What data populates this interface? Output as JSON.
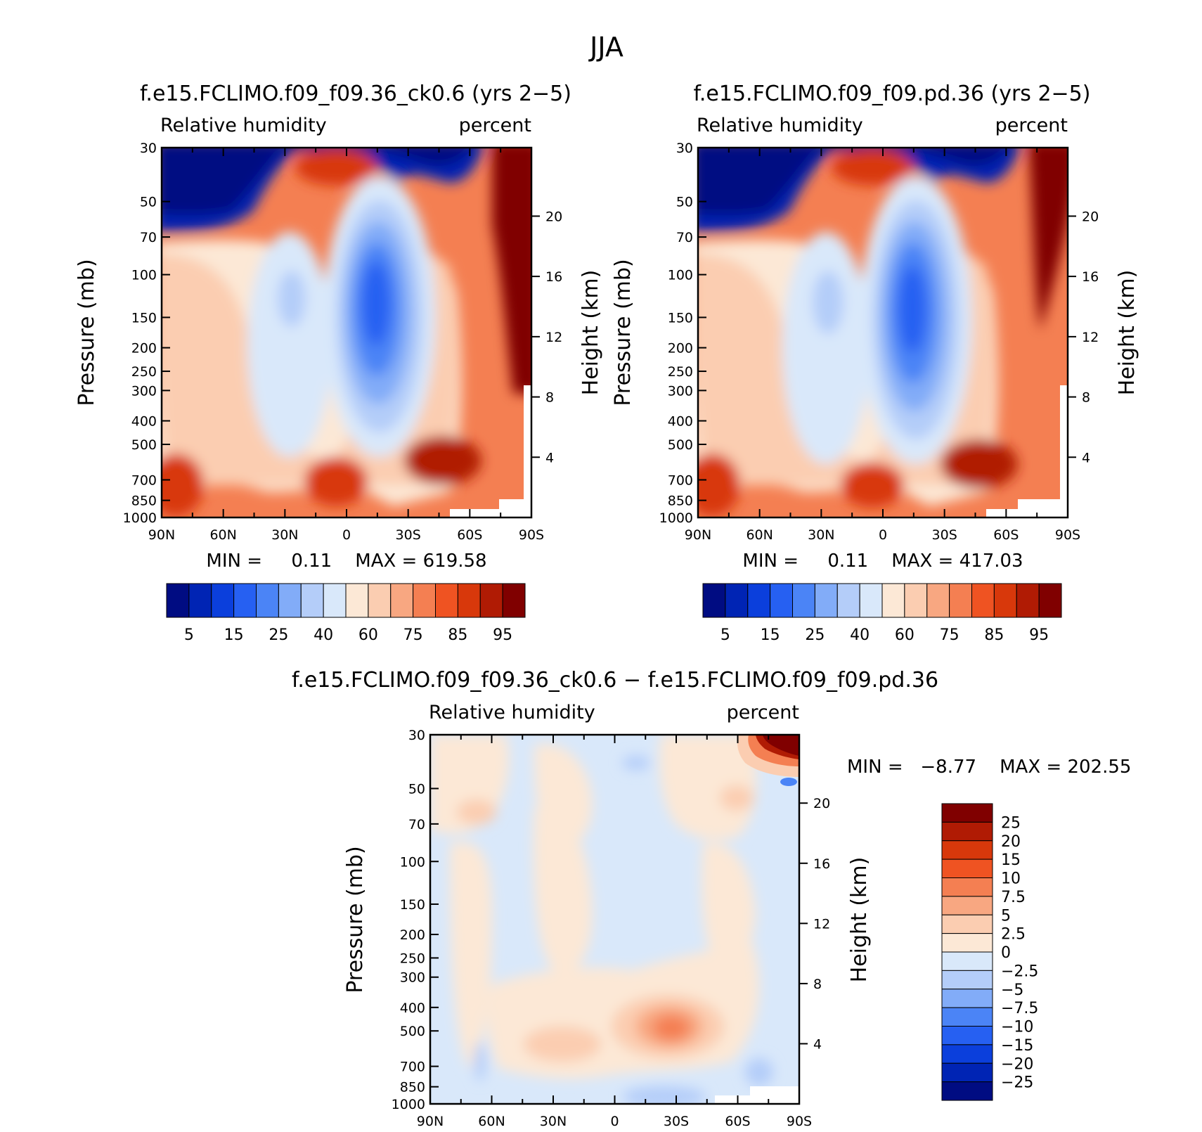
{
  "figure_title": "JJA",
  "chart_data": [
    {
      "type": "heatmap",
      "title": "f.e15.FCLIMO.f09_f09.36_ck0.6 (yrs 2−5)",
      "left_label": "Relative humidity",
      "right_label": "percent",
      "ylabel": "Pressure (mb)",
      "ylabel_right": "Height (km)",
      "stats": "MIN =     0.11    MAX = 619.58",
      "x_ticks": [
        "90N",
        "60N",
        "30N",
        "0",
        "30S",
        "60S",
        "90S"
      ],
      "y_ticks": [
        "30",
        "50",
        "70",
        "100",
        "150",
        "200",
        "250",
        "300",
        "400",
        "500",
        "700",
        "850",
        "1000"
      ],
      "y_ticks_right": [
        "20",
        "16",
        "12",
        "8",
        "4"
      ],
      "legend_labels": [
        "5",
        "15",
        "25",
        "40",
        "60",
        "75",
        "85",
        "95"
      ],
      "xlim": [
        90,
        -90
      ],
      "ylim": [
        1000,
        30
      ],
      "colors": [
        "#000c82",
        "#0024b4",
        "#0b3fdc",
        "#2660f2",
        "#4b84f6",
        "#82acf8",
        "#b4cdf9",
        "#d9e8fa",
        "#fce8d6",
        "#fbcdb1",
        "#f8a781",
        "#f47f52",
        "#ef5322",
        "#d8380b",
        "#b01b04",
        "#800000"
      ]
    },
    {
      "type": "heatmap",
      "title": "f.e15.FCLIMO.f09_f09.pd.36 (yrs 2−5)",
      "left_label": "Relative humidity",
      "right_label": "percent",
      "ylabel": "Pressure (mb)",
      "ylabel_right": "Height (km)",
      "stats": "MIN =     0.11    MAX = 417.03",
      "x_ticks": [
        "90N",
        "60N",
        "30N",
        "0",
        "30S",
        "60S",
        "90S"
      ],
      "y_ticks": [
        "30",
        "50",
        "70",
        "100",
        "150",
        "200",
        "250",
        "300",
        "400",
        "500",
        "700",
        "850",
        "1000"
      ],
      "y_ticks_right": [
        "20",
        "16",
        "12",
        "8",
        "4"
      ],
      "legend_labels": [
        "5",
        "15",
        "25",
        "40",
        "60",
        "75",
        "85",
        "95"
      ],
      "xlim": [
        90,
        -90
      ],
      "ylim": [
        1000,
        30
      ],
      "colors": [
        "#000c82",
        "#0024b4",
        "#0b3fdc",
        "#2660f2",
        "#4b84f6",
        "#82acf8",
        "#b4cdf9",
        "#d9e8fa",
        "#fce8d6",
        "#fbcdb1",
        "#f8a781",
        "#f47f52",
        "#ef5322",
        "#d8380b",
        "#b01b04",
        "#800000"
      ]
    },
    {
      "type": "heatmap",
      "title": "f.e15.FCLIMO.f09_f09.36_ck0.6 − f.e15.FCLIMO.f09_f09.pd.36",
      "left_label": "Relative humidity",
      "right_label": "percent",
      "ylabel": "Pressure (mb)",
      "ylabel_right": "Height (km)",
      "stats": "MIN =   −8.77    MAX = 202.55",
      "x_ticks": [
        "90N",
        "60N",
        "30N",
        "0",
        "30S",
        "60S",
        "90S"
      ],
      "y_ticks": [
        "30",
        "50",
        "70",
        "100",
        "150",
        "200",
        "250",
        "300",
        "400",
        "500",
        "700",
        "850",
        "1000"
      ],
      "y_ticks_right": [
        "20",
        "16",
        "12",
        "8",
        "4"
      ],
      "legend_labels": [
        "25",
        "20",
        "15",
        "10",
        "7.5",
        "5",
        "2.5",
        "0",
        "−2.5",
        "−5",
        "−7.5",
        "−10",
        "−15",
        "−20",
        "−25"
      ],
      "xlim": [
        90,
        -90
      ],
      "ylim": [
        1000,
        30
      ],
      "colors": [
        "#800000",
        "#b01b04",
        "#d8380b",
        "#ef5322",
        "#f47f52",
        "#f8a781",
        "#fbcdb1",
        "#fce8d6",
        "#d9e8fa",
        "#b4cdf9",
        "#82acf8",
        "#4b84f6",
        "#2660f2",
        "#0b3fdc",
        "#0024b4",
        "#000c82"
      ]
    }
  ]
}
